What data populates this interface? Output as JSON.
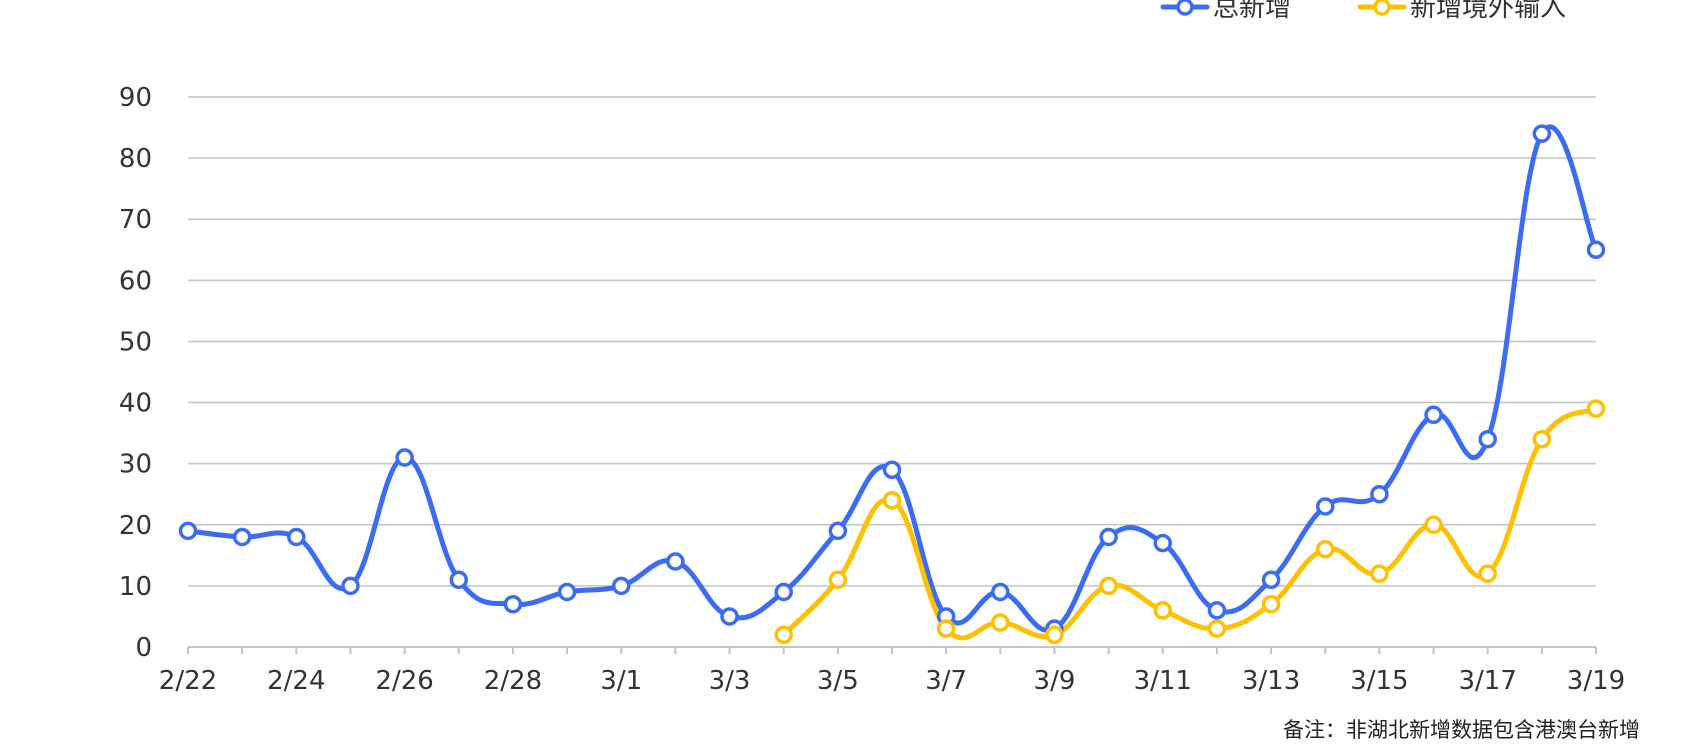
{
  "chart_data": {
    "type": "line",
    "categories": [
      "2/22",
      "2/23",
      "2/24",
      "2/25",
      "2/26",
      "2/27",
      "2/28",
      "2/29",
      "3/1",
      "3/2",
      "3/3",
      "3/4",
      "3/5",
      "3/6",
      "3/7",
      "3/8",
      "3/9",
      "3/10",
      "3/11",
      "3/12",
      "3/13",
      "3/14",
      "3/15",
      "3/16",
      "3/17",
      "3/18",
      "3/19"
    ],
    "x_tick_labels": [
      "2/22",
      "2/24",
      "2/26",
      "2/28",
      "3/1",
      "3/3",
      "3/5",
      "3/7",
      "3/9",
      "3/11",
      "3/13",
      "3/15",
      "3/17",
      "3/19"
    ],
    "y_ticks": [
      0,
      10,
      20,
      30,
      40,
      50,
      60,
      70,
      80,
      90
    ],
    "ylim": [
      0,
      90
    ],
    "grid": true,
    "legend_position": "top-right",
    "series": [
      {
        "name": "总新增",
        "color": "#3d6cf4",
        "values": [
          19,
          18,
          18,
          10,
          31,
          11,
          7,
          9,
          10,
          14,
          5,
          9,
          19,
          29,
          5,
          9,
          3,
          18,
          17,
          6,
          11,
          23,
          25,
          38,
          34,
          84,
          65
        ]
      },
      {
        "name": "新增境外输入",
        "color": "#ffc000",
        "values": [
          null,
          null,
          null,
          null,
          null,
          null,
          null,
          null,
          null,
          null,
          null,
          2,
          11,
          24,
          3,
          4,
          2,
          10,
          6,
          3,
          7,
          16,
          12,
          20,
          12,
          34,
          39
        ]
      }
    ],
    "note": "备注：非湖北新增数据包含港澳台新增"
  }
}
